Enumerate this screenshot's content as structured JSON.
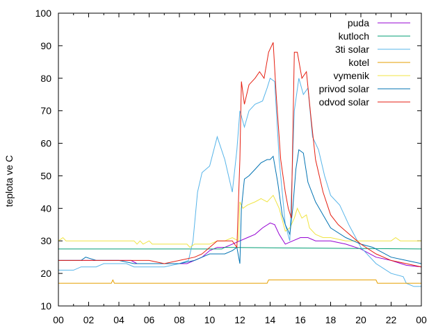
{
  "chart_data": {
    "type": "line",
    "ylabel": "teplota ve C",
    "xlabel": "",
    "xlim": [
      0,
      24
    ],
    "ylim": [
      10,
      100
    ],
    "x_ticks": [
      "00",
      "02",
      "04",
      "06",
      "08",
      "10",
      "12",
      "14",
      "16",
      "18",
      "20",
      "22",
      "00"
    ],
    "y_ticks": [
      "10",
      "20",
      "30",
      "40",
      "50",
      "60",
      "70",
      "80",
      "90",
      "100"
    ],
    "legend_position": "top-right",
    "grid": false,
    "series": [
      {
        "name": "puda",
        "color": "#9400d3",
        "points": [
          [
            0,
            24
          ],
          [
            4.8,
            24
          ],
          [
            5.2,
            23
          ],
          [
            6,
            23
          ],
          [
            7,
            23
          ],
          [
            8.5,
            23
          ],
          [
            9.5,
            25
          ],
          [
            10,
            27
          ],
          [
            10.5,
            28
          ],
          [
            11,
            28
          ],
          [
            11.5,
            29
          ],
          [
            12,
            30
          ],
          [
            12.5,
            31
          ],
          [
            13,
            32
          ],
          [
            13.5,
            34
          ],
          [
            14,
            35.5
          ],
          [
            14.3,
            35
          ],
          [
            14.6,
            32
          ],
          [
            15,
            29
          ],
          [
            15.5,
            30
          ],
          [
            16,
            31
          ],
          [
            16.5,
            31
          ],
          [
            17,
            30
          ],
          [
            18,
            30
          ],
          [
            19,
            29
          ],
          [
            20,
            27.5
          ],
          [
            21,
            25
          ],
          [
            22,
            24
          ],
          [
            23,
            22.5
          ],
          [
            24,
            22
          ]
        ]
      },
      {
        "name": "kutloch",
        "color": "#009e73",
        "points": [
          [
            0,
            27.5
          ],
          [
            10.8,
            27.5
          ],
          [
            11,
            28
          ],
          [
            24,
            27.5
          ]
        ]
      },
      {
        "name": "3ti solar",
        "color": "#56b4e9",
        "points": [
          [
            0,
            21
          ],
          [
            1,
            21
          ],
          [
            1.5,
            22
          ],
          [
            2.5,
            22
          ],
          [
            3,
            23
          ],
          [
            4.5,
            23
          ],
          [
            5,
            22
          ],
          [
            7,
            22
          ],
          [
            8,
            23
          ],
          [
            8.6,
            24
          ],
          [
            8.9,
            30
          ],
          [
            9.2,
            45
          ],
          [
            9.5,
            51
          ],
          [
            10,
            53
          ],
          [
            10.5,
            62
          ],
          [
            11,
            55
          ],
          [
            11.5,
            45
          ],
          [
            11.8,
            58
          ],
          [
            12,
            70
          ],
          [
            12.3,
            65
          ],
          [
            12.6,
            70
          ],
          [
            13,
            72
          ],
          [
            13.5,
            73
          ],
          [
            13.8,
            77
          ],
          [
            14,
            80
          ],
          [
            14.3,
            79
          ],
          [
            14.6,
            55
          ],
          [
            15,
            35
          ],
          [
            15.3,
            30
          ],
          [
            15.6,
            70
          ],
          [
            15.9,
            80
          ],
          [
            16.2,
            75
          ],
          [
            16.5,
            77
          ],
          [
            16.8,
            62
          ],
          [
            17.2,
            58
          ],
          [
            17.6,
            50
          ],
          [
            18,
            44
          ],
          [
            18.6,
            41
          ],
          [
            19.2,
            35
          ],
          [
            20,
            28
          ],
          [
            21,
            23
          ],
          [
            22,
            20
          ],
          [
            22.8,
            19
          ],
          [
            23,
            17
          ],
          [
            23.5,
            16
          ],
          [
            24,
            16
          ]
        ]
      },
      {
        "name": "kotel",
        "color": "#e69f00",
        "points": [
          [
            0,
            17
          ],
          [
            3.5,
            17
          ],
          [
            3.6,
            18
          ],
          [
            3.7,
            17
          ],
          [
            13.8,
            17
          ],
          [
            13.9,
            18
          ],
          [
            21,
            18
          ],
          [
            21.1,
            17
          ],
          [
            24,
            17
          ]
        ]
      },
      {
        "name": "vymenik",
        "color": "#f0e442",
        "points": [
          [
            0,
            30
          ],
          [
            0.3,
            31
          ],
          [
            0.5,
            30
          ],
          [
            5,
            30
          ],
          [
            5.2,
            29
          ],
          [
            5.4,
            30
          ],
          [
            5.6,
            29
          ],
          [
            6,
            30
          ],
          [
            6.2,
            29
          ],
          [
            8.5,
            29
          ],
          [
            8.7,
            28
          ],
          [
            9,
            29
          ],
          [
            10,
            29
          ],
          [
            10.5,
            30
          ],
          [
            11,
            30
          ],
          [
            11.5,
            31
          ],
          [
            11.9,
            30
          ],
          [
            12,
            42
          ],
          [
            12.2,
            40
          ],
          [
            12.5,
            41
          ],
          [
            13,
            42
          ],
          [
            13.4,
            43
          ],
          [
            13.8,
            42
          ],
          [
            14,
            43
          ],
          [
            14.2,
            44
          ],
          [
            14.6,
            40
          ],
          [
            15,
            33
          ],
          [
            15.3,
            34
          ],
          [
            15.6,
            37
          ],
          [
            15.8,
            40
          ],
          [
            16.1,
            37
          ],
          [
            16.4,
            38
          ],
          [
            16.6,
            34
          ],
          [
            17,
            32
          ],
          [
            17.5,
            31
          ],
          [
            18,
            31
          ],
          [
            19,
            30
          ],
          [
            20,
            30
          ],
          [
            21,
            30
          ],
          [
            22,
            30
          ],
          [
            22.3,
            31
          ],
          [
            22.6,
            30
          ],
          [
            24,
            30
          ]
        ]
      },
      {
        "name": "privod solar",
        "color": "#0072b2",
        "points": [
          [
            0,
            24
          ],
          [
            1.5,
            24
          ],
          [
            1.8,
            25
          ],
          [
            2.5,
            24
          ],
          [
            4,
            24
          ],
          [
            5,
            23
          ],
          [
            6.5,
            23
          ],
          [
            7,
            23
          ],
          [
            8,
            23
          ],
          [
            9,
            24
          ],
          [
            9.5,
            25
          ],
          [
            10,
            26
          ],
          [
            11,
            26
          ],
          [
            11.5,
            27
          ],
          [
            11.8,
            28
          ],
          [
            12,
            23
          ],
          [
            12.1,
            40
          ],
          [
            12.3,
            49
          ],
          [
            12.6,
            50
          ],
          [
            13,
            52
          ],
          [
            13.4,
            54
          ],
          [
            13.8,
            55
          ],
          [
            14,
            55
          ],
          [
            14.2,
            56
          ],
          [
            14.5,
            48
          ],
          [
            14.8,
            38
          ],
          [
            15,
            35
          ],
          [
            15.3,
            32
          ],
          [
            15.5,
            40
          ],
          [
            15.7,
            52
          ],
          [
            15.9,
            58
          ],
          [
            16.2,
            57
          ],
          [
            16.5,
            48
          ],
          [
            17,
            42
          ],
          [
            17.5,
            38
          ],
          [
            18,
            34
          ],
          [
            19,
            31
          ],
          [
            20,
            29
          ],
          [
            20.8,
            28
          ],
          [
            21.2,
            27
          ],
          [
            22,
            25
          ],
          [
            23,
            24
          ],
          [
            24,
            23
          ]
        ]
      },
      {
        "name": "odvod solar",
        "color": "#e51e10",
        "points": [
          [
            0,
            24
          ],
          [
            3,
            24
          ],
          [
            5,
            24
          ],
          [
            6,
            24
          ],
          [
            7,
            23
          ],
          [
            8,
            24
          ],
          [
            9,
            25
          ],
          [
            9.5,
            26
          ],
          [
            10,
            28
          ],
          [
            10.5,
            30
          ],
          [
            11,
            30
          ],
          [
            11.5,
            30
          ],
          [
            11.8,
            28
          ],
          [
            12,
            55
          ],
          [
            12.1,
            79
          ],
          [
            12.3,
            72
          ],
          [
            12.6,
            78
          ],
          [
            13,
            80
          ],
          [
            13.3,
            82
          ],
          [
            13.6,
            80
          ],
          [
            13.9,
            88
          ],
          [
            14.2,
            91
          ],
          [
            14.4,
            75
          ],
          [
            14.7,
            55
          ],
          [
            15,
            45
          ],
          [
            15.2,
            40
          ],
          [
            15.4,
            37
          ],
          [
            15.6,
            88
          ],
          [
            15.8,
            88
          ],
          [
            16.1,
            80
          ],
          [
            16.4,
            82
          ],
          [
            16.7,
            68
          ],
          [
            17,
            55
          ],
          [
            17.5,
            45
          ],
          [
            18,
            38
          ],
          [
            18.5,
            35
          ],
          [
            19,
            33
          ],
          [
            20,
            29
          ],
          [
            21,
            26
          ],
          [
            22,
            24
          ],
          [
            23,
            23
          ],
          [
            24,
            22
          ]
        ]
      }
    ]
  }
}
